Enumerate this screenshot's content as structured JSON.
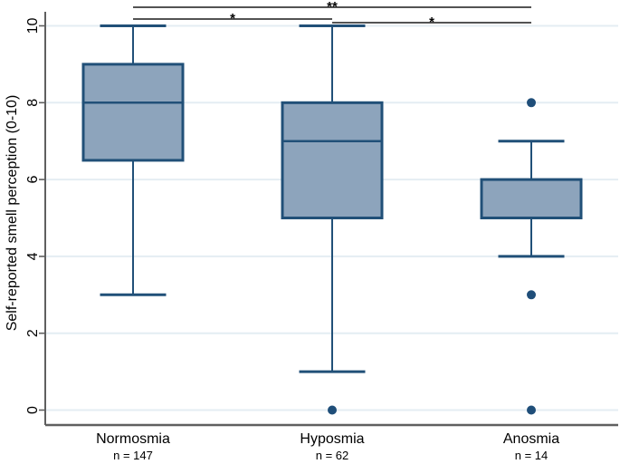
{
  "chart_data": {
    "type": "box",
    "title": "",
    "ylabel": "Self-reported smell perception (0-10)",
    "xlabel": "",
    "ylim": [
      0,
      10
    ],
    "yticks": [
      0,
      2,
      4,
      6,
      8,
      10
    ],
    "grid": "horizontal-light",
    "categories": [
      {
        "label": "Normosmia",
        "n_label": "n = 147"
      },
      {
        "label": "Hyposmia",
        "n_label": "n = 62"
      },
      {
        "label": "Anosmia",
        "n_label": "n = 14"
      }
    ],
    "series": [
      {
        "name": "Normosmia",
        "whisker_low": 3,
        "q1": 6.5,
        "median": 8,
        "q3": 9,
        "whisker_high": 10,
        "outliers": []
      },
      {
        "name": "Hyposmia",
        "whisker_low": 1,
        "q1": 5,
        "median": 7,
        "q3": 8,
        "whisker_high": 10,
        "outliers": [
          0
        ]
      },
      {
        "name": "Anosmia",
        "whisker_low": 4,
        "q1": 5,
        "median": 5,
        "q3": 6,
        "whisker_high": 7,
        "outliers": [
          8,
          3,
          0
        ]
      }
    ],
    "significance": [
      {
        "from": "Normosmia",
        "to": "Anosmia",
        "label": "**"
      },
      {
        "from": "Normosmia",
        "to": "Hyposmia",
        "label": "*"
      },
      {
        "from": "Hyposmia",
        "to": "Anosmia",
        "label": "*"
      }
    ],
    "colors": {
      "box_fill": "#8da4bc",
      "box_stroke": "#215078",
      "outlier": "#1f4e79",
      "gridline": "#e4edf3",
      "axis": "#5f5f5f",
      "significance_line": "#1a1a1a",
      "text": "#000000"
    }
  }
}
